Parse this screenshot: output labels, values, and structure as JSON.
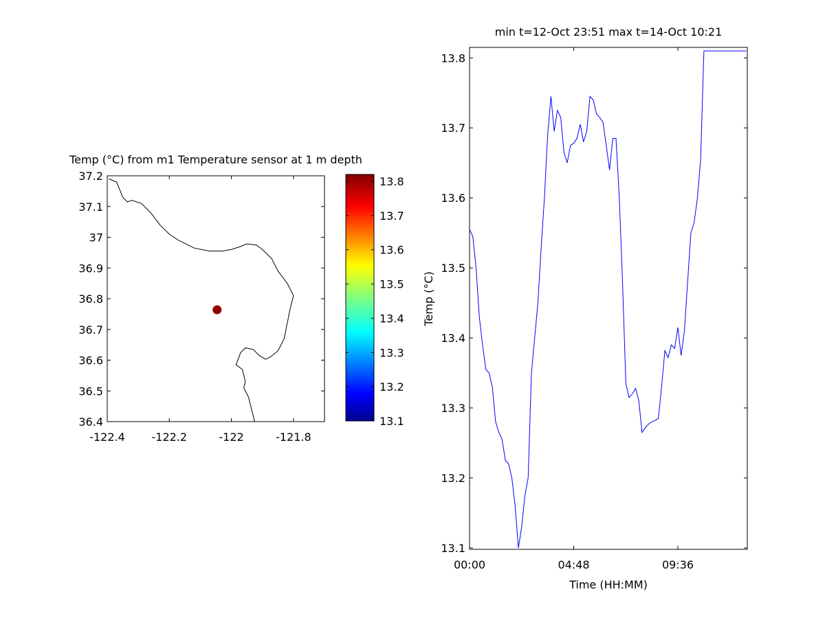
{
  "chart_data": [
    {
      "type": "map",
      "title": "Temp (°C) from m1 Temperature sensor at 1 m depth",
      "xlim": [
        -122.4,
        -121.7
      ],
      "ylim": [
        36.4,
        37.2
      ],
      "xticks": [
        -122.4,
        -122.2,
        -122,
        -121.8
      ],
      "xtick_labels": [
        "-122.4",
        "-122.2",
        "-122",
        "-121.8"
      ],
      "yticks": [
        36.4,
        36.5,
        36.6,
        36.7,
        36.8,
        36.9,
        37,
        37.1,
        37.2
      ],
      "ytick_labels": [
        "36.4",
        "36.5",
        "36.6",
        "36.7",
        "36.8",
        "36.9",
        "37",
        "37.1",
        "37.2"
      ],
      "station": {
        "lon": -122.046,
        "lat": 36.764,
        "value": 13.81
      },
      "coastline": [
        [
          -122.395,
          37.19
        ],
        [
          -122.37,
          37.18
        ],
        [
          -122.36,
          37.155
        ],
        [
          -122.35,
          37.13
        ],
        [
          -122.335,
          37.115
        ],
        [
          -122.32,
          37.12
        ],
        [
          -122.29,
          37.11
        ],
        [
          -122.26,
          37.08
        ],
        [
          -122.23,
          37.04
        ],
        [
          -122.2,
          37.01
        ],
        [
          -122.17,
          36.99
        ],
        [
          -122.12,
          36.965
        ],
        [
          -122.07,
          36.955
        ],
        [
          -122.03,
          36.955
        ],
        [
          -122.0,
          36.96
        ],
        [
          -121.97,
          36.97
        ],
        [
          -121.95,
          36.978
        ],
        [
          -121.92,
          36.975
        ],
        [
          -121.9,
          36.96
        ],
        [
          -121.87,
          36.93
        ],
        [
          -121.85,
          36.89
        ],
        [
          -121.82,
          36.85
        ],
        [
          -121.8,
          36.81
        ],
        [
          -121.81,
          36.77
        ],
        [
          -121.82,
          36.72
        ],
        [
          -121.83,
          36.67
        ],
        [
          -121.85,
          36.63
        ],
        [
          -121.875,
          36.61
        ],
        [
          -121.89,
          36.603
        ],
        [
          -121.91,
          36.615
        ],
        [
          -121.93,
          36.635
        ],
        [
          -121.955,
          36.64
        ],
        [
          -121.97,
          36.625
        ],
        [
          -121.985,
          36.585
        ],
        [
          -121.965,
          36.57
        ],
        [
          -121.96,
          36.55
        ],
        [
          -121.955,
          36.53
        ],
        [
          -121.96,
          36.51
        ],
        [
          -121.945,
          36.48
        ],
        [
          -121.935,
          36.44
        ],
        [
          -121.925,
          36.4
        ]
      ],
      "colorbar": {
        "min": 13.1,
        "max": 13.82,
        "ticks": [
          13.1,
          13.2,
          13.3,
          13.4,
          13.5,
          13.6,
          13.7,
          13.8
        ],
        "tick_labels": [
          "13.1",
          "13.2",
          "13.3",
          "13.4",
          "13.5",
          "13.6",
          "13.7",
          "13.8"
        ],
        "colormap": "jet"
      }
    },
    {
      "type": "line",
      "title": "min t=12-Oct 23:51 max t=14-Oct 10:21",
      "xlabel": "Time (HH:MM)",
      "ylabel": "Temp (°C)",
      "xlim": [
        0,
        12.8
      ],
      "ylim": [
        13.098,
        13.815
      ],
      "xticks": [
        0,
        4.8,
        9.6
      ],
      "xtick_labels": [
        "00:00",
        "04:48",
        "09:36"
      ],
      "yticks": [
        13.1,
        13.2,
        13.3,
        13.4,
        13.5,
        13.6,
        13.7,
        13.8
      ],
      "ytick_labels": [
        "13.1",
        "13.2",
        "13.3",
        "13.4",
        "13.5",
        "13.6",
        "13.7",
        "13.8"
      ],
      "series": [
        {
          "color": "#0000ff",
          "x": [
            0,
            0.15,
            0.3,
            0.45,
            0.6,
            0.75,
            0.9,
            1.05,
            1.2,
            1.35,
            1.5,
            1.65,
            1.8,
            1.95,
            2.1,
            2.25,
            2.4,
            2.55,
            2.7,
            2.85,
            3.0,
            3.15,
            3.3,
            3.45,
            3.6,
            3.75,
            3.9,
            4.05,
            4.2,
            4.35,
            4.5,
            4.65,
            4.8,
            4.95,
            5.1,
            5.25,
            5.4,
            5.55,
            5.7,
            5.85,
            6.0,
            6.15,
            6.3,
            6.45,
            6.6,
            6.75,
            6.9,
            7.05,
            7.2,
            7.35,
            7.5,
            7.65,
            7.8,
            7.95,
            8.1,
            8.25,
            8.4,
            8.55,
            8.7,
            8.85,
            9.0,
            9.15,
            9.3,
            9.45,
            9.6,
            9.75,
            9.9,
            10.05,
            10.2,
            10.35,
            10.5,
            10.65,
            10.8,
            10.95,
            11.1,
            11.25,
            11.4,
            11.55,
            11.7,
            11.85,
            12.0,
            12.15,
            12.3,
            12.45,
            12.6,
            12.75
          ],
          "y": [
            13.555,
            13.545,
            13.5,
            13.43,
            13.39,
            13.355,
            13.35,
            13.33,
            13.28,
            13.265,
            13.255,
            13.225,
            13.22,
            13.2,
            13.16,
            13.1,
            13.13,
            13.175,
            13.2,
            13.35,
            13.4,
            13.45,
            13.53,
            13.6,
            13.69,
            13.745,
            13.695,
            13.725,
            13.715,
            13.665,
            13.65,
            13.675,
            13.678,
            13.685,
            13.705,
            13.68,
            13.695,
            13.745,
            13.74,
            13.72,
            13.715,
            13.708,
            13.675,
            13.64,
            13.685,
            13.685,
            13.6,
            13.48,
            13.335,
            13.315,
            13.32,
            13.328,
            13.31,
            13.265,
            13.272,
            13.277,
            13.28,
            13.282,
            13.285,
            13.33,
            13.382,
            13.372,
            13.39,
            13.385,
            13.415,
            13.375,
            13.41,
            13.48,
            13.55,
            13.565,
            13.6,
            13.655,
            13.81,
            13.81,
            13.81,
            13.81,
            13.81,
            13.81,
            13.81,
            13.81,
            13.81,
            13.81,
            13.81,
            13.81,
            13.81,
            13.81
          ]
        }
      ]
    }
  ]
}
